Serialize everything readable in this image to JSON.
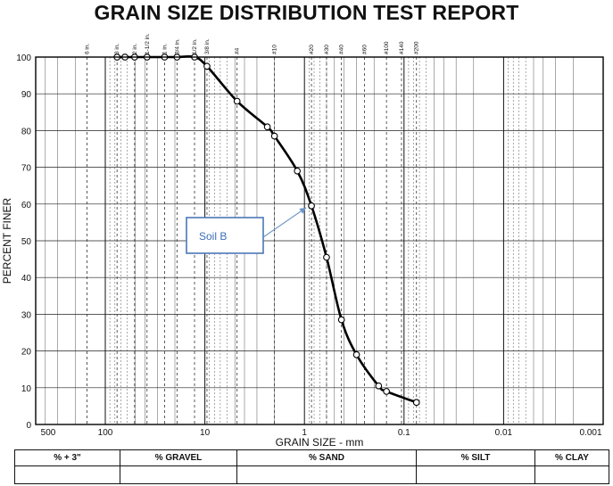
{
  "report": {
    "title": "GRAIN SIZE DISTRIBUTION TEST REPORT"
  },
  "chart_data": {
    "type": "line",
    "title": "GRAIN SIZE DISTRIBUTION TEST REPORT",
    "xlabel": "GRAIN SIZE - mm",
    "ylabel": "PERCENT FINER",
    "x_scale": "log",
    "x_reversed": true,
    "xlim": [
      500,
      0.001
    ],
    "ylim": [
      0,
      100
    ],
    "x_ticks": [
      {
        "value": 500,
        "label": "500"
      },
      {
        "value": 100,
        "label": "100"
      },
      {
        "value": 10,
        "label": "10"
      },
      {
        "value": 1,
        "label": "1"
      },
      {
        "value": 0.1,
        "label": "0.1"
      },
      {
        "value": 0.01,
        "label": "0.01"
      },
      {
        "value": 0.001,
        "label": "0.001"
      }
    ],
    "y_ticks": [
      0,
      10,
      20,
      30,
      40,
      50,
      60,
      70,
      80,
      90,
      100
    ],
    "grid": true,
    "sieve_labels": [
      {
        "size": 152.4,
        "label": "6 in."
      },
      {
        "size": 76.2,
        "label": "3 in."
      },
      {
        "size": 50.8,
        "label": "2 in."
      },
      {
        "size": 38.1,
        "label": "1-1/2 in."
      },
      {
        "size": 25.4,
        "label": "1 in."
      },
      {
        "size": 19.05,
        "label": "3/4 in."
      },
      {
        "size": 12.7,
        "label": "1/2 in."
      },
      {
        "size": 9.525,
        "label": "3/8 in."
      },
      {
        "size": 4.75,
        "label": "#4"
      },
      {
        "size": 2.0,
        "label": "#10"
      },
      {
        "size": 0.85,
        "label": "#20"
      },
      {
        "size": 0.6,
        "label": "#30"
      },
      {
        "size": 0.425,
        "label": "#40"
      },
      {
        "size": 0.25,
        "label": "#60"
      },
      {
        "size": 0.15,
        "label": "#100"
      },
      {
        "size": 0.106,
        "label": "#140"
      },
      {
        "size": 0.075,
        "label": "#200"
      }
    ],
    "series": [
      {
        "color": "#000000",
        "x": [
          76.2,
          63.5,
          50.8,
          38.1,
          25.4,
          19.05,
          12.7,
          9.525,
          4.75,
          2.36,
          2.0,
          1.18,
          0.85,
          0.6,
          0.425,
          0.3,
          0.18,
          0.15,
          0.075
        ],
        "y": [
          100,
          100,
          100,
          100,
          100,
          100,
          100,
          97.5,
          88,
          81,
          78.5,
          69,
          59.5,
          45.5,
          28.5,
          19,
          10.5,
          9,
          6
        ]
      }
    ],
    "annotations": [
      {
        "text": "Soil B",
        "points_to": {
          "x": 0.85,
          "y": 59.5
        }
      }
    ]
  },
  "table": {
    "headers": [
      "% + 3\"",
      "% GRAVEL",
      "% SAND",
      "% SILT",
      "% CLAY"
    ],
    "values": [
      "",
      "",
      "",
      "",
      ""
    ]
  }
}
